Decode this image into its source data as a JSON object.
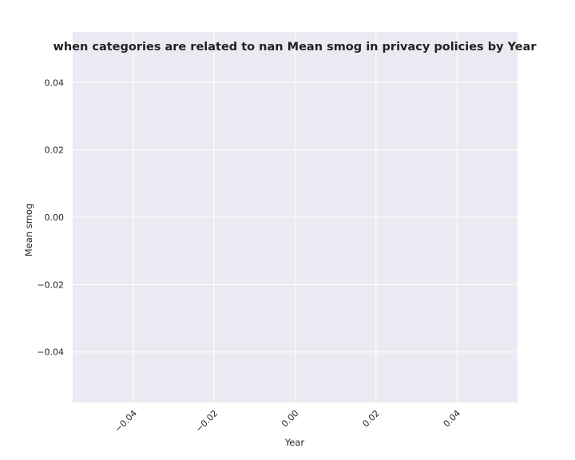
{
  "chart_data": {
    "type": "line",
    "title": "when categories are related to nan Mean smog in privacy policies by Year",
    "xlabel": "Year",
    "ylabel": "Mean smog",
    "x": [],
    "series": [],
    "xlim": [
      -0.055,
      0.055
    ],
    "ylim": [
      -0.055,
      0.055
    ],
    "x_ticks": [
      -0.04,
      -0.02,
      0.0,
      0.02,
      0.04
    ],
    "x_tick_labels": [
      "−0.04",
      "−0.02",
      "0.00",
      "0.02",
      "0.04"
    ],
    "y_ticks": [
      -0.04,
      -0.02,
      0.0,
      0.02,
      0.04
    ],
    "y_tick_labels": [
      "−0.04",
      "−0.02",
      "0.00",
      "0.02",
      "0.04"
    ],
    "x_tick_rotation": 45,
    "grid": true,
    "legend": "none",
    "colors": {
      "plot_background": "#eaeaf2",
      "grid": "#ffffff",
      "text": "#262626"
    }
  }
}
